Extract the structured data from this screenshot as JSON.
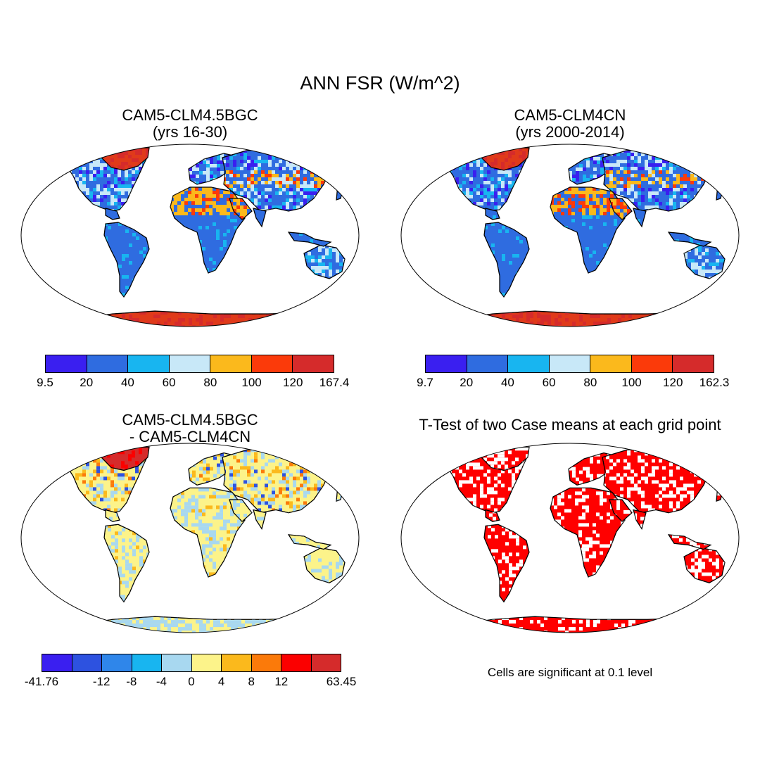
{
  "title": "ANN FSR (W/m^2)",
  "panels": [
    {
      "title_line1": "CAM5-CLM4.5BGC",
      "title_line2": "(yrs 16-30)",
      "colorbar": {
        "colors": [
          "#3a1ff0",
          "#2f6ce0",
          "#18b5f0",
          "#c8e8f8",
          "#fbb91c",
          "#fb3a0a",
          "#d52b2b"
        ],
        "ticks": [
          "9.5",
          "20",
          "40",
          "60",
          "80",
          "100",
          "120",
          "167.4"
        ]
      }
    },
    {
      "title_line1": "CAM5-CLM4CN",
      "title_line2": "(yrs 2000-2014)",
      "colorbar": {
        "colors": [
          "#3a1ff0",
          "#2f6ce0",
          "#18b5f0",
          "#c8e8f8",
          "#fbb91c",
          "#fb3a0a",
          "#d52b2b"
        ],
        "ticks": [
          "9.7",
          "20",
          "40",
          "60",
          "80",
          "100",
          "120",
          "162.3"
        ]
      }
    },
    {
      "title_line1": "CAM5-CLM4.5BGC",
      "title_line2": "- CAM5-CLM4CN",
      "colorbar": {
        "colors": [
          "#3a1ff0",
          "#2d52e0",
          "#2f86ea",
          "#18b5f0",
          "#a8d8f0",
          "#fcf38a",
          "#fbb91c",
          "#fb7a0a",
          "#fb0000",
          "#d52b2b"
        ],
        "ticks": [
          "-41.76",
          "",
          "-12",
          "-8",
          "-4",
          "0",
          "4",
          "8",
          "12",
          "",
          "63.45"
        ]
      }
    },
    {
      "title_line1": "T-Test of two Case means at each grid point",
      "note": "Cells are significant at 0.1 level",
      "colors": {
        "significant": "#ff0000",
        "not_significant": "#ffffff"
      }
    }
  ]
}
